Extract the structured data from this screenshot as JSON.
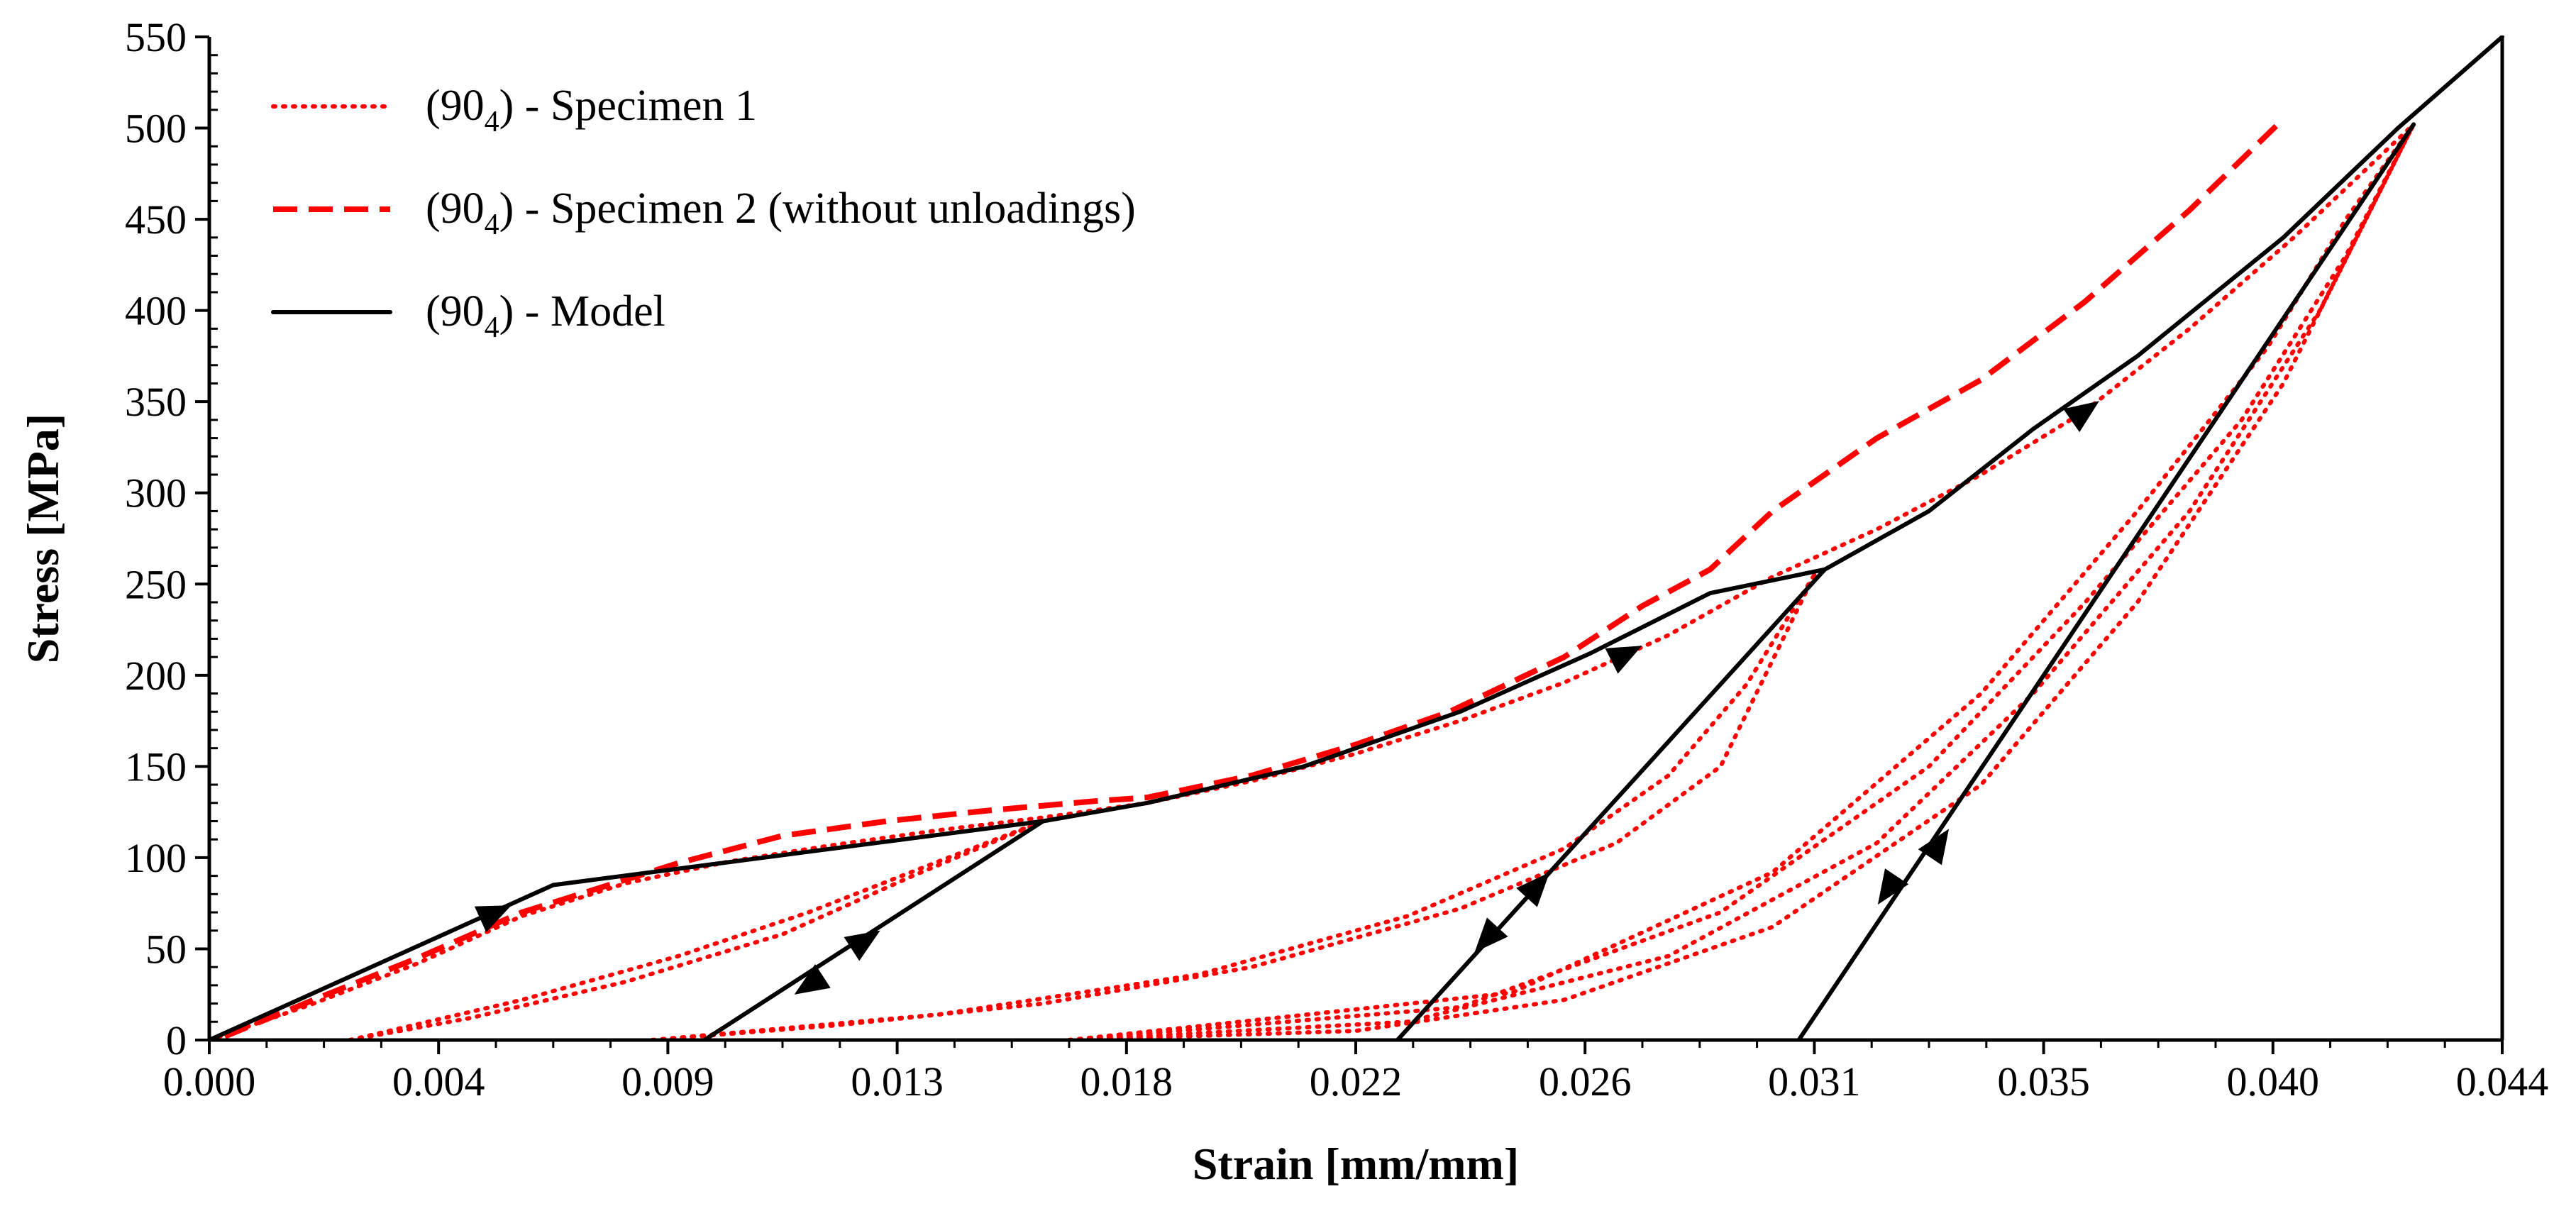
{
  "chart_data": {
    "type": "line",
    "title": "",
    "xlabel": "Strain [mm/mm]",
    "ylabel": "Stress [MPa]",
    "xlim": [
      0,
      0.044
    ],
    "ylim": [
      0,
      550
    ],
    "x_ticks": [
      0,
      0.0044,
      0.0088,
      0.0132,
      0.0176,
      0.022,
      0.0264,
      0.0308,
      0.0352,
      0.0396,
      0.044
    ],
    "x_tick_labels": [
      "0.000",
      "0.004",
      "0.009",
      "0.013",
      "0.018",
      "0.022",
      "0.026",
      "0.031",
      "0.035",
      "0.040",
      "0.044"
    ],
    "y_ticks": [
      0,
      50,
      100,
      150,
      200,
      250,
      300,
      350,
      400,
      450,
      500,
      550
    ],
    "y_tick_labels": [
      "0",
      "50",
      "100",
      "150",
      "200",
      "250",
      "300",
      "350",
      "400",
      "450",
      "500",
      "550"
    ],
    "legend": {
      "placement": "top-left",
      "entries": [
        {
          "prefix": "(90",
          "sub": "4",
          "suffix": ")  - Specimen 1",
          "style": "dotted",
          "color": "#ff0000"
        },
        {
          "prefix": "(90",
          "sub": "4",
          "suffix": ")  - Specimen 2 (without unloadings)",
          "style": "dashed",
          "color": "#ff0000"
        },
        {
          "prefix": "(90",
          "sub": "4",
          "suffix": ")  - Model",
          "style": "solid",
          "color": "#000000"
        }
      ]
    },
    "series": [
      {
        "name": "(90_4) - Specimen 1",
        "style": "dotted",
        "color": "#ff0000",
        "segments": [
          [
            [
              0,
              0
            ],
            [
              0.002,
              20
            ],
            [
              0.004,
              42
            ],
            [
              0.006,
              68
            ],
            [
              0.008,
              86
            ],
            [
              0.01,
              98
            ],
            [
              0.012,
              107
            ],
            [
              0.014,
              115
            ],
            [
              0.016,
              122
            ],
            [
              0.018,
              130
            ],
            [
              0.02,
              142
            ],
            [
              0.022,
              157
            ],
            [
              0.024,
              175
            ],
            [
              0.026,
              196
            ],
            [
              0.028,
              222
            ],
            [
              0.03,
              254
            ],
            [
              0.032,
              280
            ],
            [
              0.034,
              310
            ],
            [
              0.036,
              345
            ],
            [
              0.038,
              390
            ],
            [
              0.04,
              440
            ],
            [
              0.0423,
              502
            ]
          ],
          [
            [
              0.0027,
              0
            ],
            [
              0.005,
              12
            ],
            [
              0.008,
              32
            ],
            [
              0.011,
              58
            ],
            [
              0.0135,
              90
            ],
            [
              0.016,
              120
            ]
          ],
          [
            [
              0.0027,
              0
            ],
            [
              0.006,
              22
            ],
            [
              0.009,
              46
            ],
            [
              0.0115,
              70
            ],
            [
              0.014,
              98
            ],
            [
              0.016,
              120
            ]
          ],
          [
            [
              0.0085,
              0
            ],
            [
              0.012,
              8
            ],
            [
              0.016,
              20
            ],
            [
              0.02,
              40
            ],
            [
              0.024,
              72
            ],
            [
              0.027,
              108
            ],
            [
              0.029,
              150
            ],
            [
              0.0308,
              255
            ]
          ],
          [
            [
              0.0085,
              0
            ],
            [
              0.014,
              14
            ],
            [
              0.019,
              36
            ],
            [
              0.023,
              68
            ],
            [
              0.026,
              105
            ],
            [
              0.028,
              145
            ],
            [
              0.0295,
              195
            ],
            [
              0.0308,
              255
            ]
          ],
          [
            [
              0.0165,
              0
            ],
            [
              0.022,
              5
            ],
            [
              0.026,
              22
            ],
            [
              0.03,
              62
            ],
            [
              0.034,
              140
            ],
            [
              0.037,
              240
            ],
            [
              0.0398,
              360
            ],
            [
              0.0423,
              502
            ]
          ],
          [
            [
              0.0165,
              0
            ],
            [
              0.023,
              10
            ],
            [
              0.028,
              46
            ],
            [
              0.032,
              108
            ],
            [
              0.035,
              190
            ],
            [
              0.038,
              290
            ],
            [
              0.0405,
              400
            ],
            [
              0.0423,
              502
            ]
          ],
          [
            [
              0.0165,
              0
            ],
            [
              0.024,
              18
            ],
            [
              0.029,
              70
            ],
            [
              0.033,
              150
            ],
            [
              0.036,
              240
            ],
            [
              0.039,
              340
            ],
            [
              0.041,
              430
            ],
            [
              0.0423,
              502
            ]
          ],
          [
            [
              0.0165,
              0
            ],
            [
              0.025,
              26
            ],
            [
              0.03,
              92
            ],
            [
              0.034,
              190
            ],
            [
              0.037,
              290
            ],
            [
              0.0395,
              380
            ],
            [
              0.041,
              450
            ],
            [
              0.0423,
              502
            ]
          ]
        ]
      },
      {
        "name": "(90_4) - Specimen 2 (without unloadings)",
        "style": "dashed",
        "color": "#ff0000",
        "points": [
          [
            0.0003,
            2
          ],
          [
            0.002,
            22
          ],
          [
            0.004,
            45
          ],
          [
            0.006,
            70
          ],
          [
            0.008,
            88
          ],
          [
            0.009,
            97
          ],
          [
            0.011,
            112
          ],
          [
            0.013,
            120
          ],
          [
            0.015,
            126
          ],
          [
            0.017,
            131
          ],
          [
            0.018,
            133
          ],
          [
            0.02,
            145
          ],
          [
            0.022,
            162
          ],
          [
            0.0238,
            180
          ],
          [
            0.026,
            210
          ],
          [
            0.0275,
            238
          ],
          [
            0.0288,
            258
          ],
          [
            0.03,
            290
          ],
          [
            0.032,
            330
          ],
          [
            0.034,
            362
          ],
          [
            0.036,
            405
          ],
          [
            0.038,
            455
          ],
          [
            0.0398,
            505
          ]
        ]
      },
      {
        "name": "(90_4) - Model",
        "style": "solid",
        "color": "#000000",
        "segments": [
          [
            [
              0,
              0
            ],
            [
              0.0066,
              85
            ],
            [
              0.016,
              120
            ],
            [
              0.018,
              130
            ],
            [
              0.021,
              150
            ],
            [
              0.024,
              180
            ],
            [
              0.0265,
              212
            ],
            [
              0.0288,
              245
            ],
            [
              0.031,
              258
            ],
            [
              0.033,
              290
            ],
            [
              0.035,
              335
            ],
            [
              0.037,
              375
            ],
            [
              0.0398,
              440
            ],
            [
              0.042,
              500
            ],
            [
              0.044,
              550
            ]
          ],
          [
            [
              0.0095,
              0
            ],
            [
              0.016,
              120
            ]
          ],
          [
            [
              0.0228,
              0
            ],
            [
              0.031,
              258
            ]
          ],
          [
            [
              0.0305,
              0
            ],
            [
              0.0423,
              502
            ]
          ]
        ]
      }
    ],
    "arrows": [
      {
        "x": 0.0055,
        "y": 70,
        "direction": "loading"
      },
      {
        "x": 0.0115,
        "y": 30,
        "direction": "unloading"
      },
      {
        "x": 0.0126,
        "y": 55,
        "direction": "loading"
      },
      {
        "x": 0.0245,
        "y": 55,
        "direction": "unloading"
      },
      {
        "x": 0.0255,
        "y": 85,
        "direction": "loading"
      },
      {
        "x": 0.0272,
        "y": 212,
        "direction": "loading"
      },
      {
        "x": 0.0322,
        "y": 82,
        "direction": "unloading"
      },
      {
        "x": 0.0332,
        "y": 108,
        "direction": "loading"
      },
      {
        "x": 0.036,
        "y": 345,
        "direction": "loading"
      }
    ]
  }
}
